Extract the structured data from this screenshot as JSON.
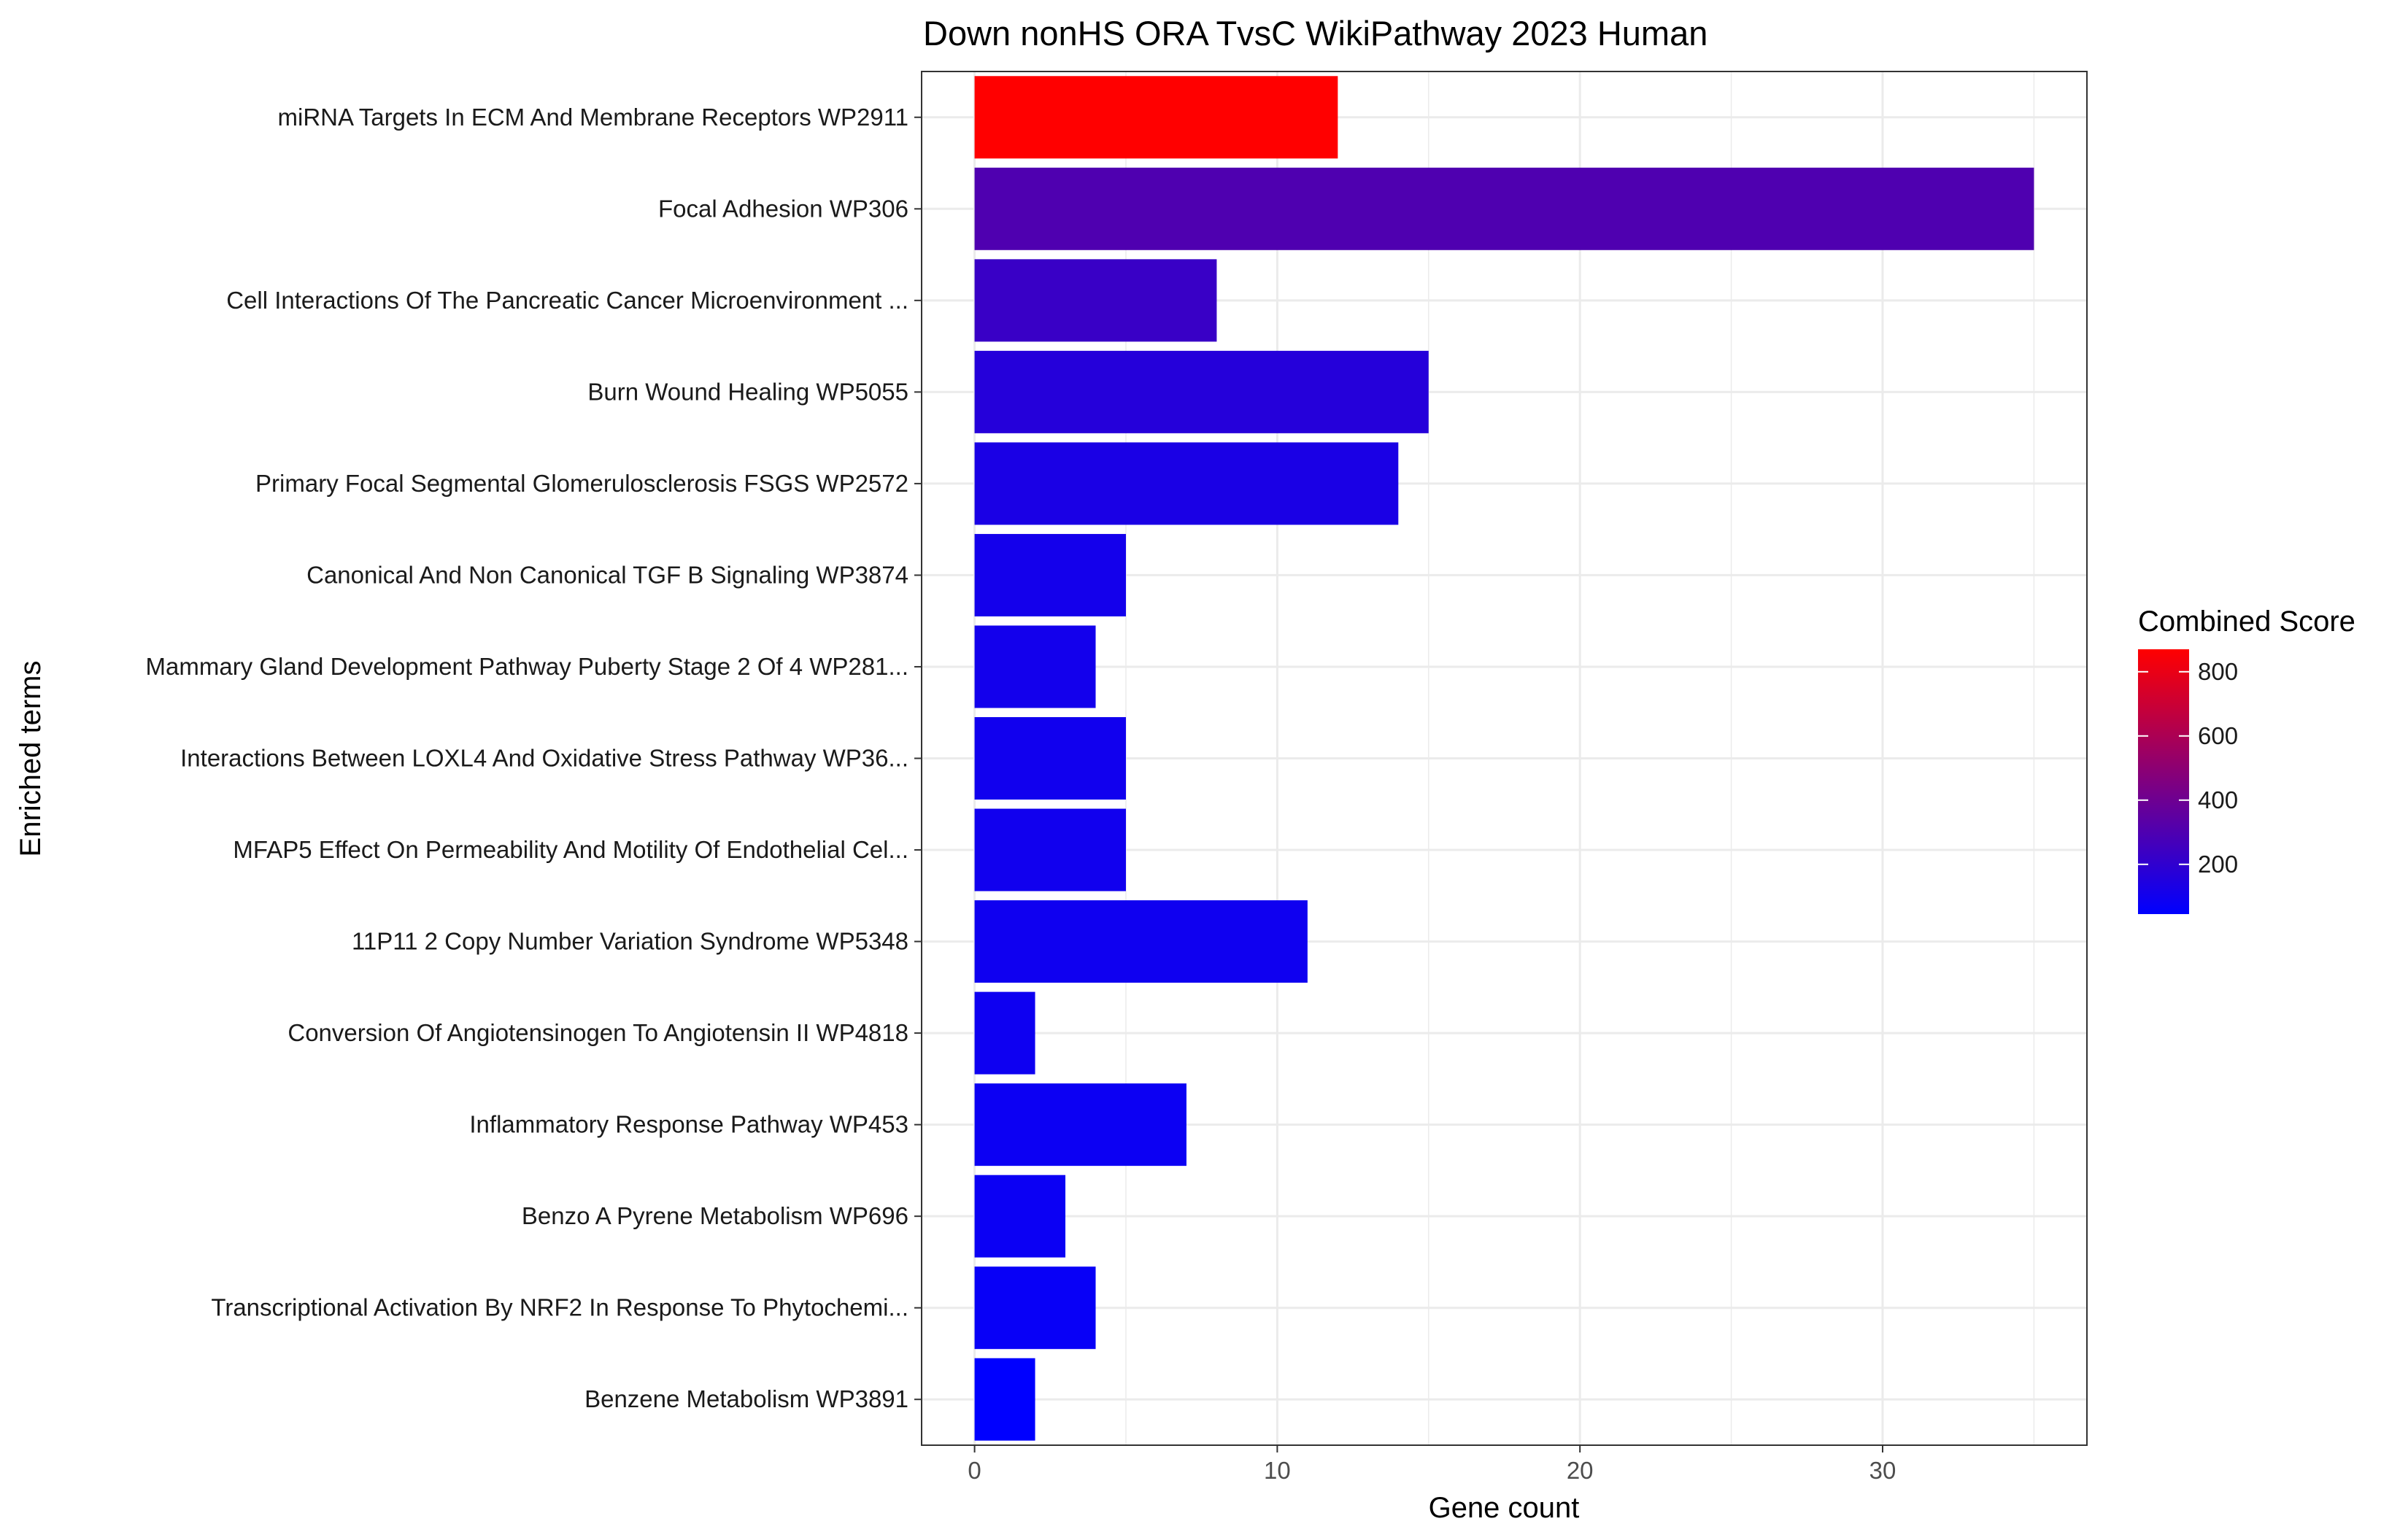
{
  "chart_data": {
    "type": "bar",
    "orientation": "horizontal",
    "title": "Down nonHS ORA TvsC WikiPathway 2023 Human",
    "xlabel": "Gene count",
    "ylabel": "Enriched terms",
    "xlim": [
      -1.75,
      36.75
    ],
    "x_ticks": [
      0,
      10,
      20,
      30
    ],
    "grid": true,
    "categories": [
      "miRNA Targets In ECM And Membrane Receptors WP2911",
      "Focal Adhesion WP306",
      "Cell Interactions Of The Pancreatic Cancer Microenvironment ...",
      "Burn Wound Healing WP5055",
      "Primary Focal Segmental Glomerulosclerosis FSGS WP2572",
      "Canonical And Non Canonical TGF B Signaling WP3874",
      "Mammary Gland Development Pathway Puberty Stage 2 Of 4 WP281...",
      "Interactions Between LOXL4 And Oxidative Stress Pathway WP36...",
      "MFAP5 Effect On Permeability And Motility Of Endothelial Cel...",
      "11P11 2 Copy Number Variation Syndrome WP5348",
      "Conversion Of Angiotensinogen To Angiotensin II WP4818",
      "Inflammatory Response Pathway WP453",
      "Benzo A Pyrene Metabolism WP696",
      "Transcriptional Activation By NRF2 In Response To Phytochemi...",
      "Benzene Metabolism WP3891"
    ],
    "values": [
      12,
      35,
      8,
      15,
      14,
      5,
      4,
      5,
      5,
      11,
      2,
      7,
      3,
      4,
      2
    ],
    "combined_score": [
      870,
      300,
      230,
      165,
      130,
      110,
      105,
      100,
      100,
      95,
      90,
      85,
      80,
      70,
      45
    ],
    "legend": {
      "title": "Combined Score",
      "placement": "right",
      "range": [
        45,
        870
      ],
      "ticks": [
        200,
        400,
        600,
        800
      ],
      "color_low": "#0000ff",
      "color_high": "#ff0000"
    }
  }
}
